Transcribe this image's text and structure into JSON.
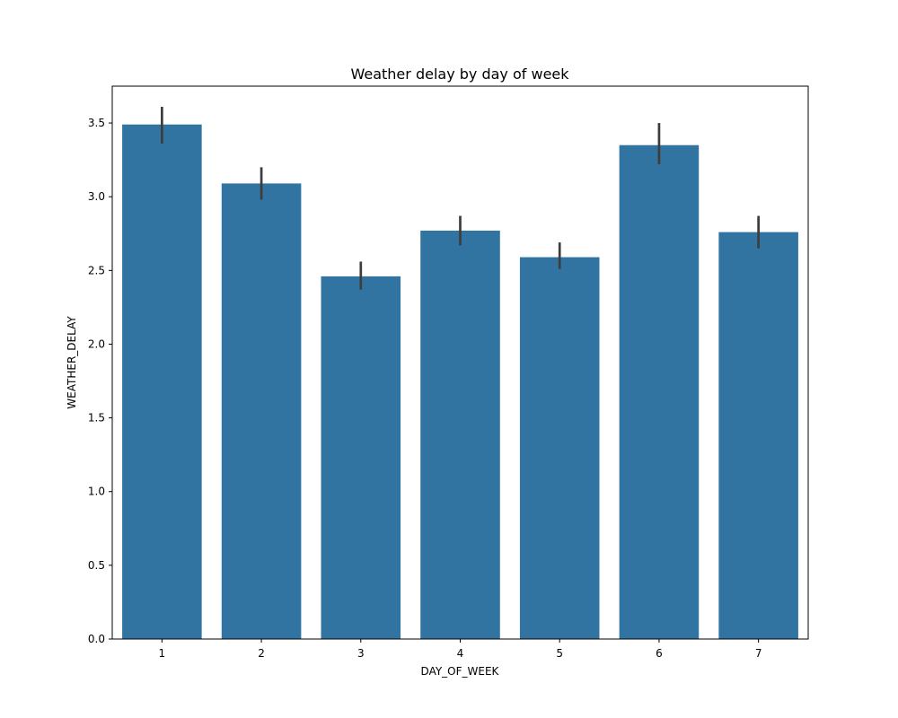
{
  "chart_data": {
    "type": "bar",
    "title": "Weather delay by day of week",
    "xlabel": "DAY_OF_WEEK",
    "ylabel": "WEATHER_DELAY",
    "categories": [
      "1",
      "2",
      "3",
      "4",
      "5",
      "6",
      "7"
    ],
    "values": [
      3.49,
      3.09,
      2.46,
      2.77,
      2.59,
      3.35,
      2.76
    ],
    "error_low": [
      3.36,
      2.98,
      2.37,
      2.67,
      2.51,
      3.22,
      2.65
    ],
    "error_high": [
      3.61,
      3.2,
      2.56,
      2.87,
      2.69,
      3.5,
      2.87
    ],
    "ylim": [
      0,
      3.75
    ],
    "yticks": [
      "0.0",
      "0.5",
      "1.0",
      "1.5",
      "2.0",
      "2.5",
      "3.0",
      "3.5"
    ],
    "grid": false,
    "legend": "none",
    "colors": {
      "bar": "#3274a1",
      "error_bar": "#3d3d3d"
    }
  }
}
